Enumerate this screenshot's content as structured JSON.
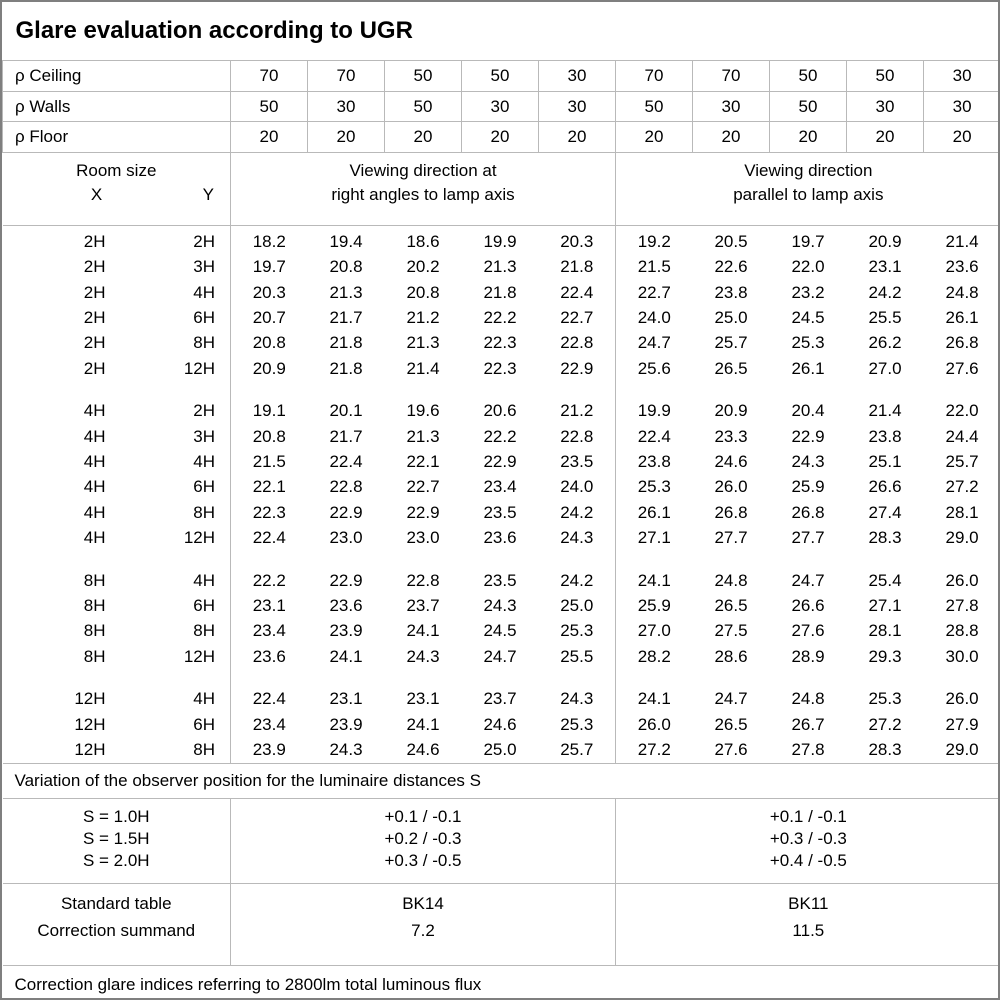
{
  "title": "Glare evaluation according to UGR",
  "reflectance_rows": [
    {
      "label": "ρ Ceiling",
      "values": [
        "70",
        "70",
        "50",
        "50",
        "30",
        "70",
        "70",
        "50",
        "50",
        "30"
      ]
    },
    {
      "label": "ρ Walls",
      "values": [
        "50",
        "30",
        "50",
        "30",
        "30",
        "50",
        "30",
        "50",
        "30",
        "30"
      ]
    },
    {
      "label": "ρ Floor",
      "values": [
        "20",
        "20",
        "20",
        "20",
        "20",
        "20",
        "20",
        "20",
        "20",
        "20"
      ]
    }
  ],
  "room_header": {
    "title": "Room size",
    "x_label": "X",
    "y_label": "Y"
  },
  "direction_headers": {
    "right_angles": {
      "line1": "Viewing direction at",
      "line2": "right angles to lamp axis"
    },
    "parallel": {
      "line1": "Viewing direction",
      "line2": "parallel to lamp axis"
    }
  },
  "groups": [
    {
      "rows": [
        {
          "x": "2H",
          "y": "2H",
          "right_angles": [
            "18.2",
            "19.4",
            "18.6",
            "19.9",
            "20.3"
          ],
          "parallel": [
            "19.2",
            "20.5",
            "19.7",
            "20.9",
            "21.4"
          ]
        },
        {
          "x": "2H",
          "y": "3H",
          "right_angles": [
            "19.7",
            "20.8",
            "20.2",
            "21.3",
            "21.8"
          ],
          "parallel": [
            "21.5",
            "22.6",
            "22.0",
            "23.1",
            "23.6"
          ]
        },
        {
          "x": "2H",
          "y": "4H",
          "right_angles": [
            "20.3",
            "21.3",
            "20.8",
            "21.8",
            "22.4"
          ],
          "parallel": [
            "22.7",
            "23.8",
            "23.2",
            "24.2",
            "24.8"
          ]
        },
        {
          "x": "2H",
          "y": "6H",
          "right_angles": [
            "20.7",
            "21.7",
            "21.2",
            "22.2",
            "22.7"
          ],
          "parallel": [
            "24.0",
            "25.0",
            "24.5",
            "25.5",
            "26.1"
          ]
        },
        {
          "x": "2H",
          "y": "8H",
          "right_angles": [
            "20.8",
            "21.8",
            "21.3",
            "22.3",
            "22.8"
          ],
          "parallel": [
            "24.7",
            "25.7",
            "25.3",
            "26.2",
            "26.8"
          ]
        },
        {
          "x": "2H",
          "y": "12H",
          "right_angles": [
            "20.9",
            "21.8",
            "21.4",
            "22.3",
            "22.9"
          ],
          "parallel": [
            "25.6",
            "26.5",
            "26.1",
            "27.0",
            "27.6"
          ]
        }
      ]
    },
    {
      "rows": [
        {
          "x": "4H",
          "y": "2H",
          "right_angles": [
            "19.1",
            "20.1",
            "19.6",
            "20.6",
            "21.2"
          ],
          "parallel": [
            "19.9",
            "20.9",
            "20.4",
            "21.4",
            "22.0"
          ]
        },
        {
          "x": "4H",
          "y": "3H",
          "right_angles": [
            "20.8",
            "21.7",
            "21.3",
            "22.2",
            "22.8"
          ],
          "parallel": [
            "22.4",
            "23.3",
            "22.9",
            "23.8",
            "24.4"
          ]
        },
        {
          "x": "4H",
          "y": "4H",
          "right_angles": [
            "21.5",
            "22.4",
            "22.1",
            "22.9",
            "23.5"
          ],
          "parallel": [
            "23.8",
            "24.6",
            "24.3",
            "25.1",
            "25.7"
          ]
        },
        {
          "x": "4H",
          "y": "6H",
          "right_angles": [
            "22.1",
            "22.8",
            "22.7",
            "23.4",
            "24.0"
          ],
          "parallel": [
            "25.3",
            "26.0",
            "25.9",
            "26.6",
            "27.2"
          ]
        },
        {
          "x": "4H",
          "y": "8H",
          "right_angles": [
            "22.3",
            "22.9",
            "22.9",
            "23.5",
            "24.2"
          ],
          "parallel": [
            "26.1",
            "26.8",
            "26.8",
            "27.4",
            "28.1"
          ]
        },
        {
          "x": "4H",
          "y": "12H",
          "right_angles": [
            "22.4",
            "23.0",
            "23.0",
            "23.6",
            "24.3"
          ],
          "parallel": [
            "27.1",
            "27.7",
            "27.7",
            "28.3",
            "29.0"
          ]
        }
      ]
    },
    {
      "rows": [
        {
          "x": "8H",
          "y": "4H",
          "right_angles": [
            "22.2",
            "22.9",
            "22.8",
            "23.5",
            "24.2"
          ],
          "parallel": [
            "24.1",
            "24.8",
            "24.7",
            "25.4",
            "26.0"
          ]
        },
        {
          "x": "8H",
          "y": "6H",
          "right_angles": [
            "23.1",
            "23.6",
            "23.7",
            "24.3",
            "25.0"
          ],
          "parallel": [
            "25.9",
            "26.5",
            "26.6",
            "27.1",
            "27.8"
          ]
        },
        {
          "x": "8H",
          "y": "8H",
          "right_angles": [
            "23.4",
            "23.9",
            "24.1",
            "24.5",
            "25.3"
          ],
          "parallel": [
            "27.0",
            "27.5",
            "27.6",
            "28.1",
            "28.8"
          ]
        },
        {
          "x": "8H",
          "y": "12H",
          "right_angles": [
            "23.6",
            "24.1",
            "24.3",
            "24.7",
            "25.5"
          ],
          "parallel": [
            "28.2",
            "28.6",
            "28.9",
            "29.3",
            "30.0"
          ]
        }
      ]
    },
    {
      "rows": [
        {
          "x": "12H",
          "y": "4H",
          "right_angles": [
            "22.4",
            "23.1",
            "23.1",
            "23.7",
            "24.3"
          ],
          "parallel": [
            "24.1",
            "24.7",
            "24.8",
            "25.3",
            "26.0"
          ]
        },
        {
          "x": "12H",
          "y": "6H",
          "right_angles": [
            "23.4",
            "23.9",
            "24.1",
            "24.6",
            "25.3"
          ],
          "parallel": [
            "26.0",
            "26.5",
            "26.7",
            "27.2",
            "27.9"
          ]
        },
        {
          "x": "12H",
          "y": "8H",
          "right_angles": [
            "23.9",
            "24.3",
            "24.6",
            "25.0",
            "25.7"
          ],
          "parallel": [
            "27.2",
            "27.6",
            "27.8",
            "28.3",
            "29.0"
          ]
        }
      ]
    }
  ],
  "variation_note": "Variation of the observer position for the luminaire distances S",
  "s_rows": [
    {
      "label": "S = 1.0H",
      "right_angles": "+0.1 / -0.1",
      "parallel": "+0.1 / -0.1"
    },
    {
      "label": "S = 1.5H",
      "right_angles": "+0.2 / -0.3",
      "parallel": "+0.3 / -0.3"
    },
    {
      "label": "S = 2.0H",
      "right_angles": "+0.3 / -0.5",
      "parallel": "+0.4 / -0.5"
    }
  ],
  "standard_section": {
    "table_label": "Standard table",
    "summand_label": "Correction summand",
    "right_angles": {
      "table": "BK14",
      "summand": "7.2"
    },
    "parallel": {
      "table": "BK11",
      "summand": "11.5"
    }
  },
  "footer_note": "Correction glare indices referring to 2800lm total luminous flux",
  "colors": {
    "grid": "#b9b9b9",
    "frame": "#7f7f7f",
    "text": "#000000",
    "background": "#ffffff"
  }
}
